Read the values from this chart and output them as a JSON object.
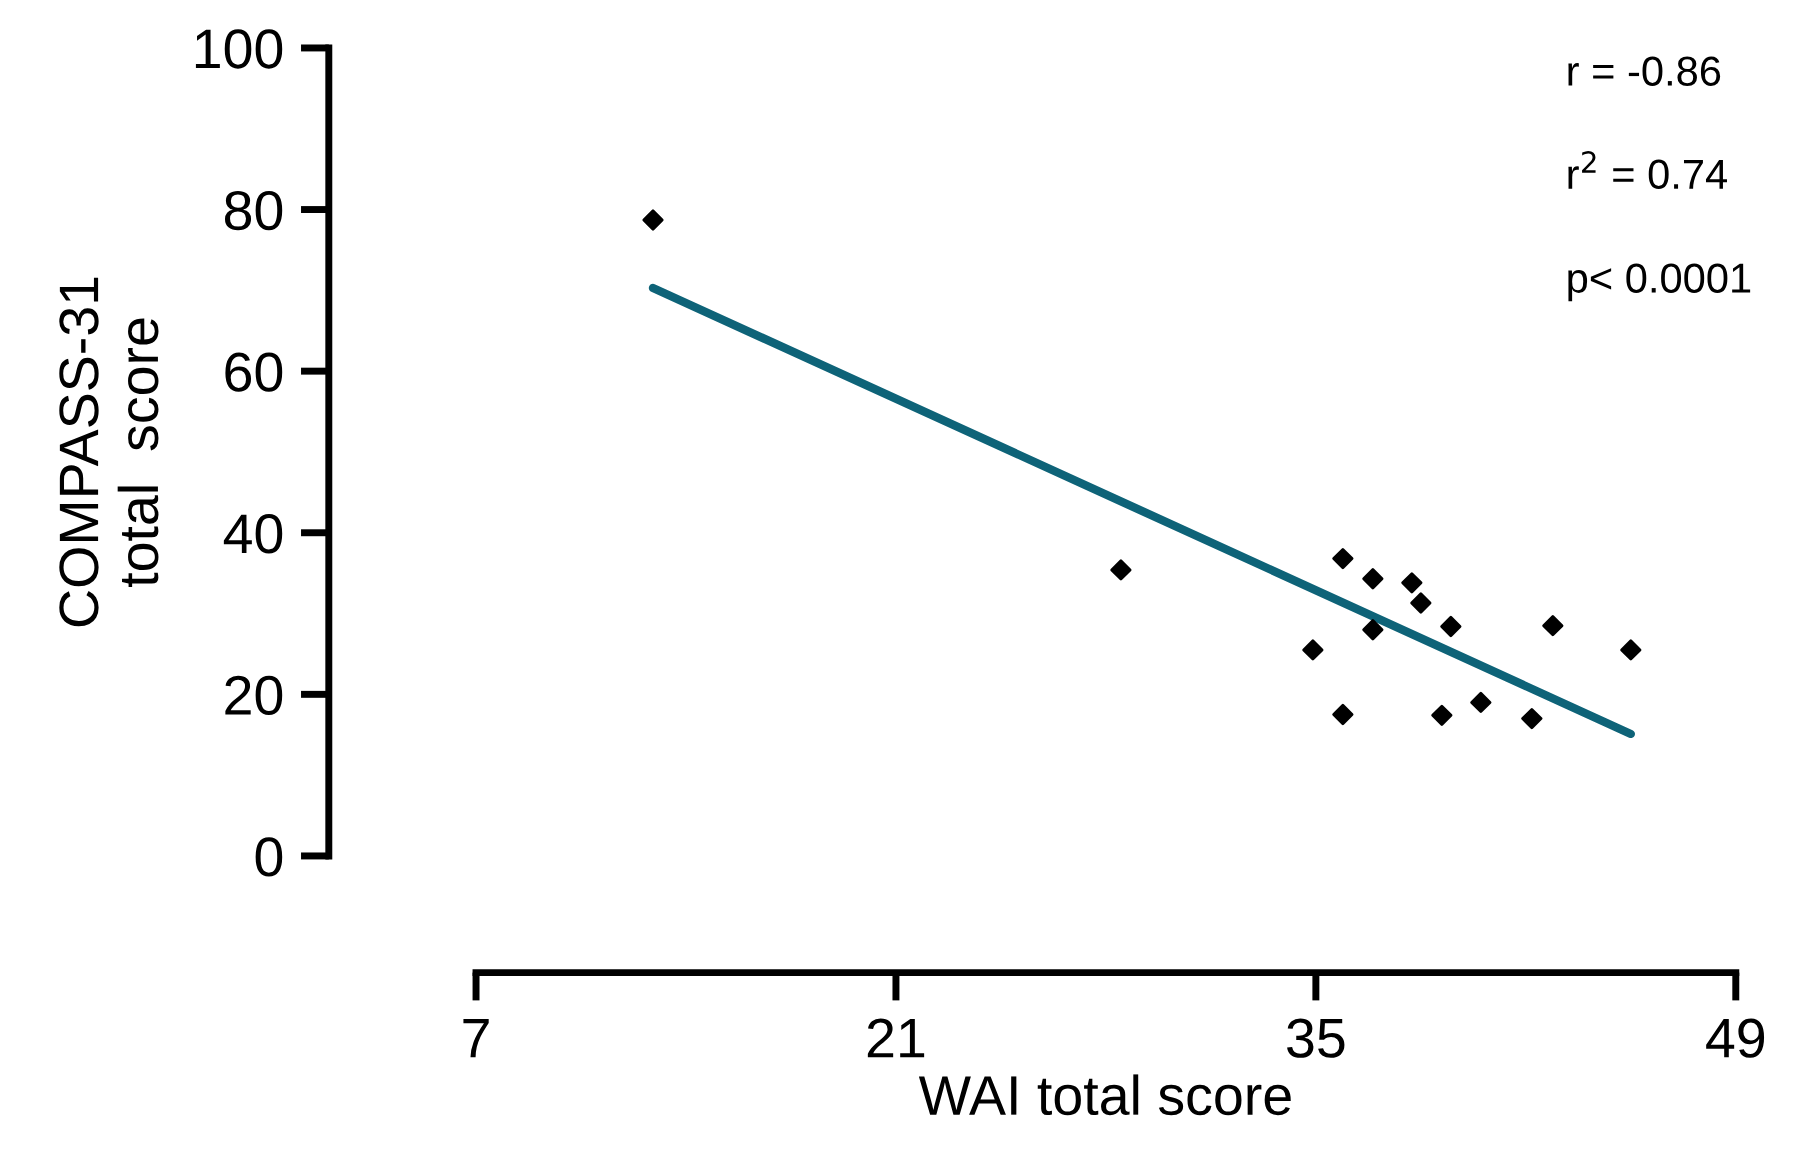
{
  "chart_data": {
    "type": "scatter",
    "xlabel": "WAI total score",
    "ylabel": "COMPASS-31\ntotal  score",
    "xlim": [
      7,
      49
    ],
    "xticks": [
      7,
      21,
      35,
      49
    ],
    "ylim": [
      0,
      100
    ],
    "yticks": [
      0,
      20,
      40,
      60,
      80,
      100
    ],
    "grid": false,
    "legend": false,
    "series": [
      {
        "marker": "diamond",
        "color": "#000000",
        "x": [
          12.9,
          28.5,
          35.9,
          36.9,
          38.2,
          38.5,
          39.5,
          42.9,
          45.5,
          34.9,
          36.9,
          35.9,
          39.2,
          40.5,
          42.2
        ],
        "values": [
          78.7,
          35.4,
          36.8,
          34.3,
          33.8,
          31.3,
          28.4,
          28.5,
          25.5,
          25.5,
          28.0,
          17.5,
          17.4,
          19.0,
          17.0
        ]
      },
      {
        "type": "line",
        "color": "#0e6378",
        "x": [
          12.9,
          45.5
        ],
        "values": [
          70.3,
          15.1
        ]
      }
    ],
    "annotations": [
      "r = -0.86",
      "r$^{2}$ = 0.74",
      "p< 0.0001"
    ]
  }
}
